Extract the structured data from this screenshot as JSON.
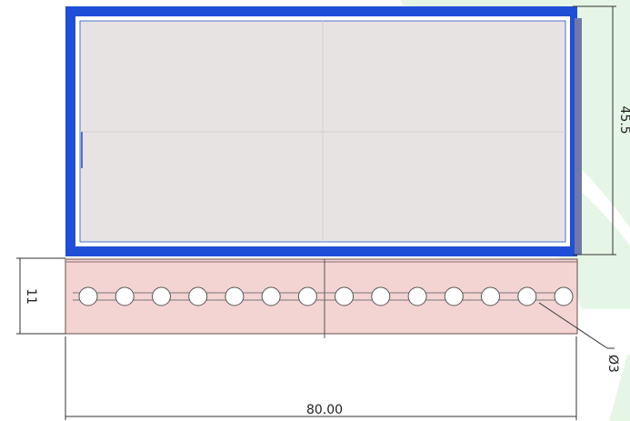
{
  "drawing": {
    "dimensions": {
      "width": "80.00",
      "height_top": "45.5",
      "height_bottom": "11",
      "hole_diameter": "Ø3"
    },
    "hole_count": 14,
    "colors": {
      "frame_border": "#1f4fd6",
      "panel_fill": "#e8e3e3",
      "base_fill": "#f4d3d3",
      "watermark": "#e3f5e3",
      "dim_line": "#333333"
    }
  }
}
